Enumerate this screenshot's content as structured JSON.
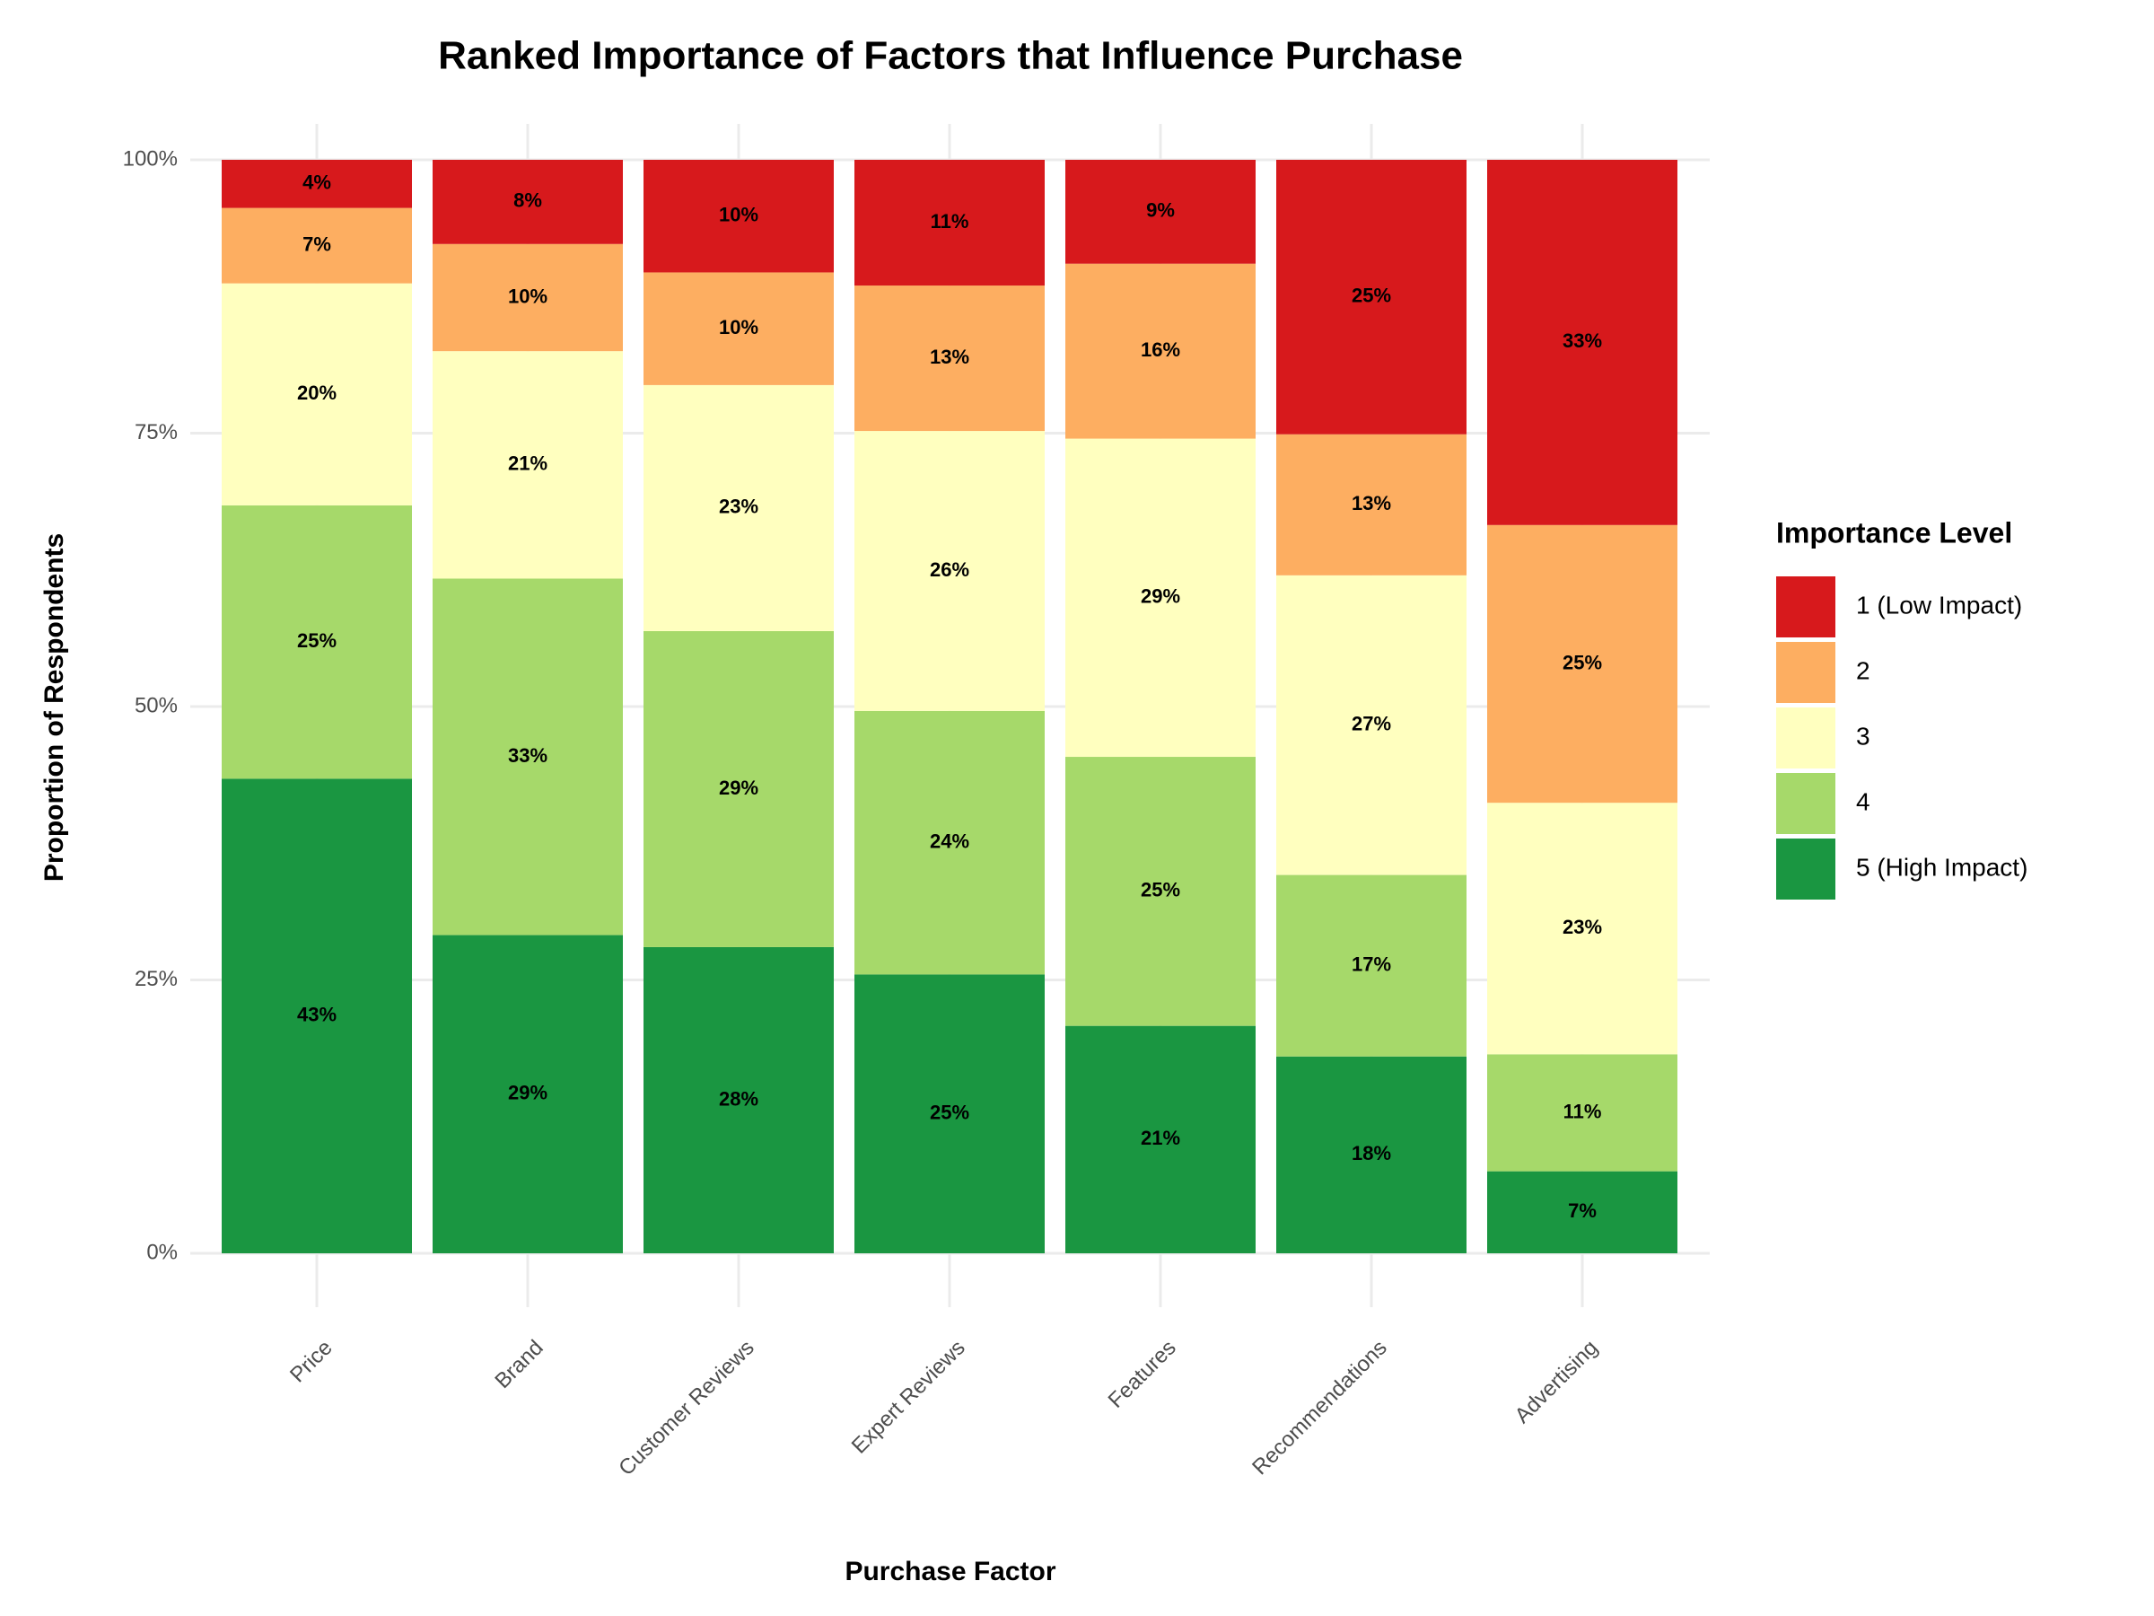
{
  "chart_data": {
    "type": "bar",
    "stacked": true,
    "title": "Ranked Importance of Factors that Influence Purchase",
    "x_label": "Purchase Factor",
    "y_label": "Proportion of Respondents",
    "legend_title": "Importance Level",
    "legend_position": "right",
    "grid": true,
    "categories": [
      "Price",
      "Brand",
      "Customer Reviews",
      "Expert Reviews",
      "Features",
      "Recommendations",
      "Advertising"
    ],
    "ylim": [
      0,
      100
    ],
    "yticks": [
      {
        "value": 0,
        "label": "0%"
      },
      {
        "value": 25,
        "label": "25%"
      },
      {
        "value": 50,
        "label": "50%"
      },
      {
        "value": 75,
        "label": "75%"
      },
      {
        "value": 100,
        "label": "100%"
      }
    ],
    "series": [
      {
        "name": "1 (Low Impact)",
        "color": "#d7191c",
        "values": [
          4.4,
          7.7,
          10.3,
          11.5,
          9.5,
          25.1,
          33.4
        ],
        "value_labels": [
          "4%",
          "8%",
          "10%",
          "11%",
          "9%",
          "25%",
          "33%"
        ]
      },
      {
        "name": "2",
        "color": "#fdae61",
        "values": [
          6.9,
          9.8,
          10.3,
          13.3,
          16.0,
          12.9,
          25.4
        ],
        "value_labels": [
          "7%",
          "10%",
          "10%",
          "13%",
          "16%",
          "13%",
          "25%"
        ]
      },
      {
        "name": "3",
        "color": "#ffffbf",
        "values": [
          20.3,
          20.8,
          22.5,
          25.6,
          29.1,
          27.4,
          23.0
        ],
        "value_labels": [
          "20%",
          "21%",
          "23%",
          "26%",
          "29%",
          "27%",
          "23%"
        ]
      },
      {
        "name": "4",
        "color": "#a6d96a",
        "values": [
          25.0,
          32.6,
          28.9,
          24.1,
          24.6,
          16.6,
          10.7
        ],
        "value_labels": [
          "25%",
          "33%",
          "29%",
          "24%",
          "25%",
          "17%",
          "11%"
        ]
      },
      {
        "name": "5 (High Impact)",
        "color": "#1a9641",
        "values": [
          43.4,
          29.1,
          28.0,
          25.5,
          20.8,
          18.0,
          7.5
        ],
        "value_labels": [
          "43%",
          "29%",
          "28%",
          "25%",
          "21%",
          "18%",
          "7%"
        ]
      }
    ]
  }
}
